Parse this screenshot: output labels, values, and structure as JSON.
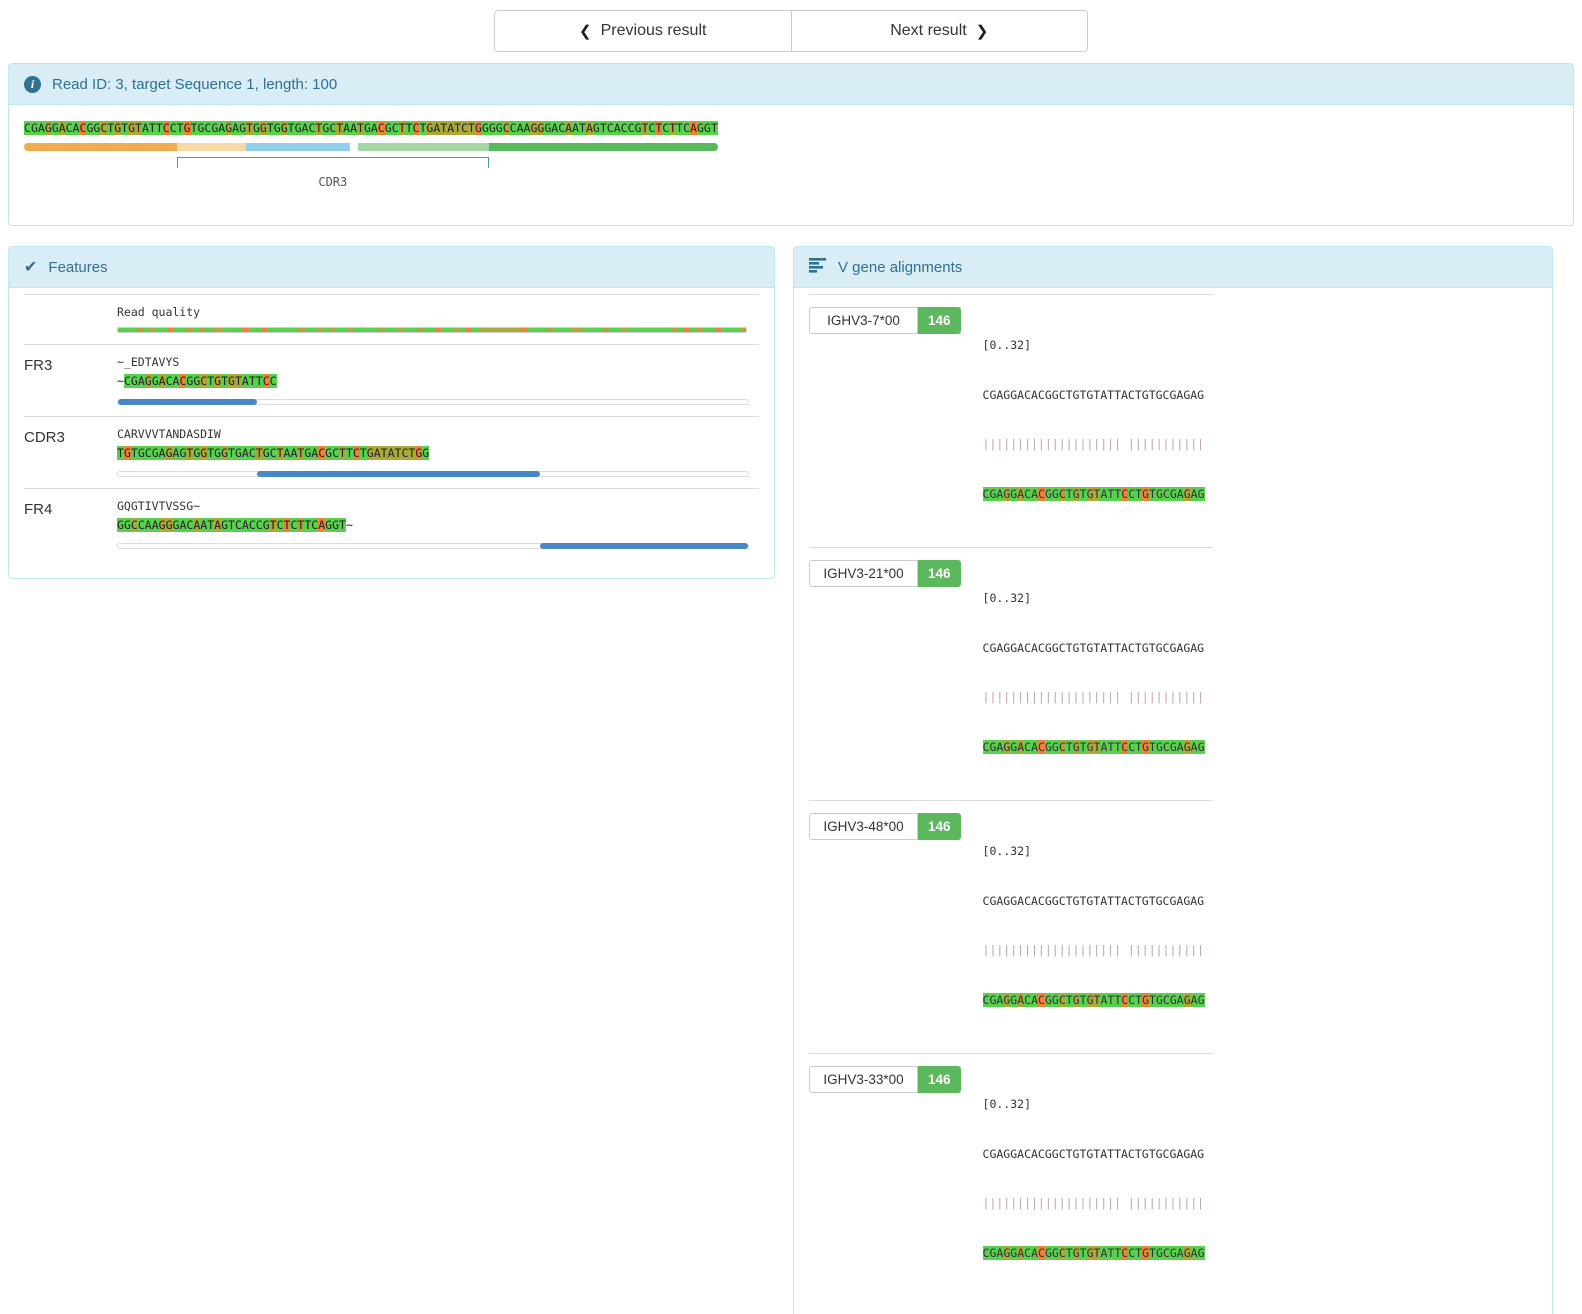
{
  "nav": {
    "previous_label": "Previous result",
    "next_label": "Next result"
  },
  "icons": {
    "chevron_left": "❮",
    "chevron_right": "❯",
    "info": "i",
    "check": "✔"
  },
  "read_info": {
    "title": "Read ID: 3, target Sequence 1, length: 100"
  },
  "read": {
    "sequence": "CGAGGACACGGCTGTGTATTCCTGTGCGAGAGTGGTGGTGACTGCTAATGACGCTTCTGATATCTGGGGCCAAGGGACAATAGTCACCGTCTCTTCAGGT",
    "quality": "gggygyggoggygygyygggoggogggggyggygyggyggggyggyggyggoggygogyyyyyyyogggygggyygggyggygggggggygogyggogggy",
    "regions": [
      {
        "name": "v-segment",
        "color": "#f0ad4e",
        "width_pct": 22
      },
      {
        "name": "v-cdr3-overlap",
        "color": "#f7d9a6",
        "width_pct": 10
      },
      {
        "name": "d-segment",
        "color": "#90d1e9",
        "width_pct": 15
      },
      {
        "name": "gap",
        "color": "transparent",
        "width_pct": 1.2
      },
      {
        "name": "j-cdr3-overlap",
        "color": "#a6d8a4",
        "width_pct": 18.8
      },
      {
        "name": "j-segment",
        "color": "#57b85c",
        "width_pct": 33
      }
    ],
    "cdr3_bracket": {
      "label": "CDR3",
      "start_pct": 22,
      "end_pct": 67
    }
  },
  "features_panel": {
    "title": "Features",
    "quality_row_label": "Read quality",
    "rows": [
      {
        "label": "FR3",
        "aa": "~_EDTAVYS",
        "nt_prefix": "~",
        "nt": "CGAGGACACGGCTGTGTATTCC",
        "nt_suffix": "",
        "qstart": 0,
        "bar_start_pct": 0,
        "bar_end_pct": 22
      },
      {
        "label": "CDR3",
        "aa": "CARVVVTANDASDIW",
        "nt_prefix": "",
        "nt": "TGTGCGAGAGTGGTGGTGACTGCTAATGACGCTTCTGATATCTGG",
        "nt_suffix": "",
        "qstart": 22,
        "bar_start_pct": 22,
        "bar_end_pct": 67
      },
      {
        "label": "FR4",
        "aa": "GQGTIVTVSSG~",
        "nt_prefix": "",
        "nt": "GGCCAAGGGACAATAGTCACCGTCTCTTCAGGT",
        "nt_suffix": "~",
        "qstart": 67,
        "bar_start_pct": 67,
        "bar_end_pct": 100
      }
    ]
  },
  "v_panel": {
    "title": "V gene alignments",
    "alignments": [
      {
        "gene": "IGHV3-7*00",
        "score": "146",
        "range": "[0..32]",
        "ref": "CGAGGACACGGCTGTGTATTACTGTGCGAGAG",
        "read": "CGAGGACACGGCTGTGTATTCCTGTGCGAGAG",
        "qstart": 0
      },
      {
        "gene": "IGHV3-21*00",
        "score": "146",
        "range": "[0..32]",
        "ref": "CGAGGACACGGCTGTGTATTACTGTGCGAGAG",
        "read": "CGAGGACACGGCTGTGTATTCCTGTGCGAGAG",
        "qstart": 0
      },
      {
        "gene": "IGHV3-48*00",
        "score": "146",
        "range": "[0..32]",
        "ref": "CGAGGACACGGCTGTGTATTACTGTGCGAGAG",
        "read": "CGAGGACACGGCTGTGTATTCCTGTGCGAGAG",
        "qstart": 0
      },
      {
        "gene": "IGHV3-33*00",
        "score": "146",
        "range": "[0..32]",
        "ref": "CGAGGACACGGCTGTGTATTACTGTGCGAGAG",
        "read": "CGAGGACACGGCTGTGTATTCCTGTGCGAGAG",
        "qstart": 0
      }
    ]
  },
  "colors": {
    "quality": {
      "g": "#58d24e",
      "y": "#a9aa38",
      "o": "#ee8336"
    },
    "progress_fill": "#4788c7",
    "badge": "#5cb85c",
    "bracket": "#3aa79b",
    "panel_border": "#bce8f1",
    "panel_heading_bg": "#d9edf7",
    "panel_heading_text": "#31708f"
  }
}
